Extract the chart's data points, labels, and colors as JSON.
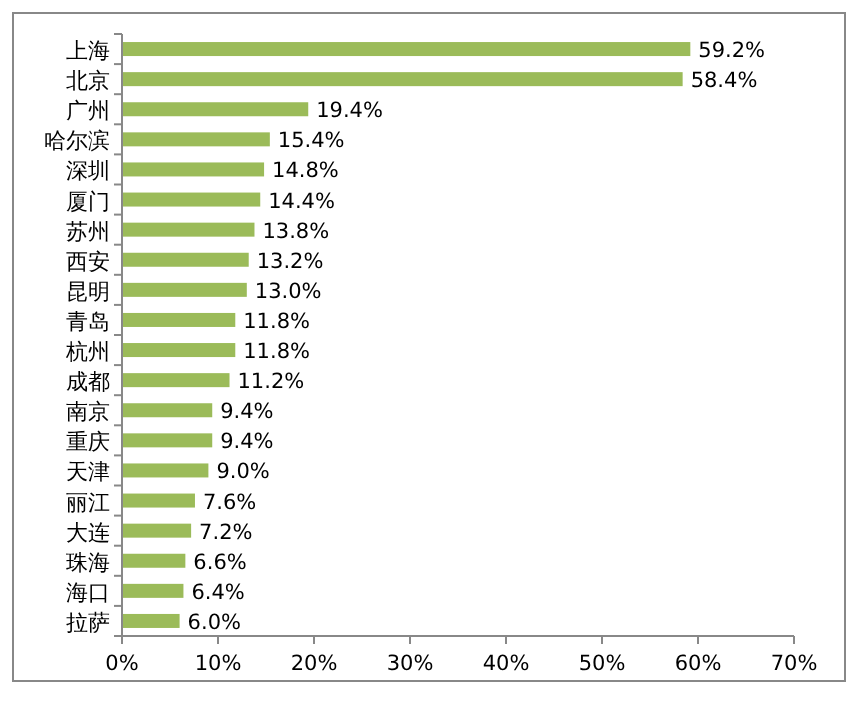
{
  "chart_data": {
    "type": "bar",
    "orientation": "horizontal",
    "categories": [
      "上海",
      "北京",
      "广州",
      "哈尔滨",
      "深圳",
      "厦门",
      "苏州",
      "西安",
      "昆明",
      "青岛",
      "杭州",
      "成都",
      "南京",
      "重庆",
      "天津",
      "丽江",
      "大连",
      "珠海",
      "海口",
      "拉萨"
    ],
    "values": [
      59.2,
      58.4,
      19.4,
      15.4,
      14.8,
      14.4,
      13.8,
      13.2,
      13.0,
      11.8,
      11.8,
      11.2,
      9.4,
      9.4,
      9.0,
      7.6,
      7.2,
      6.6,
      6.4,
      6.0
    ],
    "value_labels": [
      "59.2%",
      "58.4%",
      "19.4%",
      "15.4%",
      "14.8%",
      "14.4%",
      "13.8%",
      "13.2%",
      "13.0%",
      "11.8%",
      "11.8%",
      "11.2%",
      "9.4%",
      "9.4%",
      "9.0%",
      "7.6%",
      "7.2%",
      "6.6%",
      "6.4%",
      "6.0%"
    ],
    "color": "#9bbb59",
    "xlim": [
      0,
      70
    ],
    "xticks": [
      {
        "value": 0,
        "label": "0%"
      },
      {
        "value": 10,
        "label": "10%"
      },
      {
        "value": 20,
        "label": "20%"
      },
      {
        "value": 30,
        "label": "30%"
      },
      {
        "value": 40,
        "label": "40%"
      },
      {
        "value": 50,
        "label": "50%"
      },
      {
        "value": 60,
        "label": "60%"
      },
      {
        "value": 70,
        "label": "70%"
      }
    ],
    "grid": false
  }
}
